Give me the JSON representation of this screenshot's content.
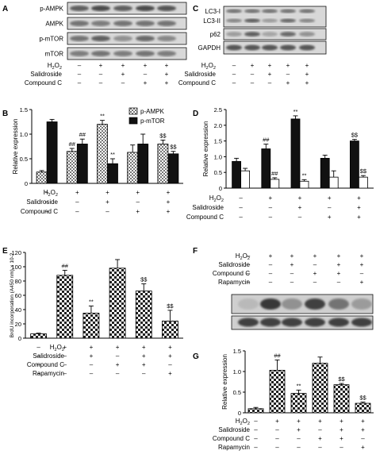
{
  "figure": {
    "panels": {
      "A": {
        "letter": "A",
        "blot_labels": [
          "p-AMPK",
          "AMPK",
          "p-mTOR",
          "mTOR"
        ],
        "treatments": [
          {
            "label": "H2O2",
            "marks": [
              "–",
              "+",
              "+",
              "+",
              "+"
            ]
          },
          {
            "label": "Salidroside",
            "marks": [
              "–",
              "–",
              "+",
              "–",
              "+"
            ]
          },
          {
            "label": "Compound C",
            "marks": [
              "–",
              "–",
              "–",
              "+",
              "+"
            ]
          }
        ]
      },
      "B": {
        "letter": "B"
      },
      "C": {
        "letter": "C",
        "blot_labels": [
          "LC3-I",
          "LC3-II",
          "p62",
          "GAPDH"
        ],
        "treatments": [
          {
            "label": "H2O2",
            "marks": [
              "–",
              "+",
              "+",
              "+",
              "+"
            ]
          },
          {
            "label": "Salidroside",
            "marks": [
              "–",
              "–",
              "+",
              "–",
              "+"
            ]
          },
          {
            "label": "Compound C",
            "marks": [
              "–",
              "–",
              "–",
              "+",
              "+"
            ]
          }
        ]
      },
      "D": {
        "letter": "D"
      },
      "E": {
        "letter": "E"
      },
      "F": {
        "letter": "F",
        "treatments": [
          {
            "label": "H2O2",
            "marks": [
              "–",
              "+",
              "+",
              "+",
              "+",
              "+"
            ]
          },
          {
            "label": "Salidroside",
            "marks": [
              "–",
              "–",
              "+",
              "–",
              "+",
              "+"
            ]
          },
          {
            "label": "Compound C",
            "marks": [
              "–",
              "–",
              "–",
              "+",
              "+",
              "–"
            ]
          },
          {
            "label": "Rapamycin",
            "marks": [
              "–",
              "–",
              "–",
              "–",
              "–",
              "+"
            ]
          }
        ]
      },
      "G": {
        "letter": "G"
      }
    }
  },
  "chart_data": [
    {
      "panel": "B",
      "type": "bar",
      "ylabel": "Relative expression",
      "ylim": [
        0,
        1.5
      ],
      "yticks": [
        "0",
        "0.5",
        "1.0",
        "1.5"
      ],
      "legend": "top-right",
      "series": [
        {
          "name": "p-AMPK",
          "values": [
            0.23,
            0.65,
            1.2,
            0.63,
            0.8
          ],
          "errors": [
            0.03,
            0.06,
            0.08,
            0.15,
            0.08
          ],
          "annotations": [
            "",
            "##",
            "**",
            "",
            "$$"
          ],
          "pattern": "hatch"
        },
        {
          "name": "p-mTOR",
          "values": [
            1.25,
            0.8,
            0.4,
            0.8,
            0.6
          ],
          "errors": [
            0.05,
            0.1,
            0.1,
            0.2,
            0.05
          ],
          "annotations": [
            "",
            "##",
            "**",
            "",
            "$$"
          ],
          "pattern": "solid"
        }
      ],
      "treatments": [
        {
          "label": "H2O2",
          "marks": [
            "–",
            "+",
            "+",
            "+",
            "+"
          ]
        },
        {
          "label": "Salidroside",
          "marks": [
            "–",
            "–",
            "+",
            "–",
            "+"
          ]
        },
        {
          "label": "Compound C",
          "marks": [
            "–",
            "–",
            "–",
            "+",
            "+"
          ]
        }
      ]
    },
    {
      "panel": "D",
      "type": "bar",
      "ylabel": "Relative expression",
      "ylim": [
        0,
        2.5
      ],
      "yticks": [
        "0",
        "0.5",
        "1.0",
        "1.5",
        "2.0",
        "2.5"
      ],
      "series": [
        {
          "name": "",
          "values": [
            0.85,
            1.25,
            2.2,
            0.95,
            1.5
          ],
          "errors": [
            0.1,
            0.15,
            0.1,
            0.1,
            0.05
          ],
          "annotations": [
            "",
            "##",
            "**",
            "",
            "$$"
          ],
          "pattern": "solid"
        },
        {
          "name": "",
          "values": [
            0.55,
            0.28,
            0.22,
            0.35,
            0.35
          ],
          "errors": [
            0.08,
            0.05,
            0.05,
            0.2,
            0.05
          ],
          "annotations": [
            "",
            "##",
            "**",
            "",
            "$$"
          ],
          "pattern": "white"
        }
      ],
      "treatments": [
        {
          "label": "H2O2",
          "marks": [
            "–",
            "+",
            "+",
            "+",
            "+"
          ]
        },
        {
          "label": "Salidroside",
          "marks": [
            "–",
            "–",
            "+",
            "–",
            "+"
          ]
        },
        {
          "label": "Compound C",
          "marks": [
            "–",
            "–",
            "–",
            "+",
            "+"
          ]
        }
      ]
    },
    {
      "panel": "E",
      "type": "bar",
      "ylabel": "BrdU incorporation (A450 nm) × 10-2",
      "ylim": [
        0,
        120
      ],
      "yticks": [
        "0",
        "20",
        "40",
        "60",
        "80",
        "100",
        "120"
      ],
      "series": [
        {
          "name": "",
          "values": [
            6,
            88,
            35,
            98,
            66,
            24
          ],
          "errors": [
            1,
            7,
            10,
            12,
            10,
            15
          ],
          "annotations": [
            "",
            "##",
            "**",
            "",
            "$$",
            "$$"
          ],
          "pattern": "check"
        }
      ],
      "treatments": [
        {
          "label": "H2O2",
          "marks": [
            "–",
            "+",
            "+",
            "+",
            "+",
            "+"
          ]
        },
        {
          "label": "Salidroside",
          "marks": [
            "–",
            "–",
            "+",
            "–",
            "+",
            "+"
          ]
        },
        {
          "label": "Compound C",
          "marks": [
            "–",
            "–",
            "–",
            "+",
            "+",
            "–"
          ]
        },
        {
          "label": "Rapamycin",
          "marks": [
            "–",
            "–",
            "–",
            "–",
            "–",
            "+"
          ]
        }
      ]
    },
    {
      "panel": "G",
      "type": "bar",
      "ylabel": "Relative expression",
      "ylim": [
        0,
        1.5
      ],
      "yticks": [
        "0",
        "0.5",
        "1.0",
        "1.5"
      ],
      "series": [
        {
          "name": "",
          "values": [
            0.1,
            1.03,
            0.47,
            1.2,
            0.68,
            0.23
          ],
          "errors": [
            0.03,
            0.25,
            0.08,
            0.15,
            0.03,
            0.03
          ],
          "annotations": [
            "",
            "##",
            "**",
            "",
            "$$",
            "$$"
          ],
          "pattern": "check"
        }
      ],
      "treatments": [
        {
          "label": "H2O2",
          "marks": [
            "–",
            "+",
            "+",
            "+",
            "+",
            "+"
          ]
        },
        {
          "label": "Salidroside",
          "marks": [
            "–",
            "–",
            "+",
            "–",
            "+",
            "+"
          ]
        },
        {
          "label": "Compound C",
          "marks": [
            "–",
            "–",
            "–",
            "+",
            "+",
            "–"
          ]
        },
        {
          "label": "Rapamycin",
          "marks": [
            "–",
            "–",
            "–",
            "–",
            "–",
            "+"
          ]
        }
      ]
    }
  ]
}
